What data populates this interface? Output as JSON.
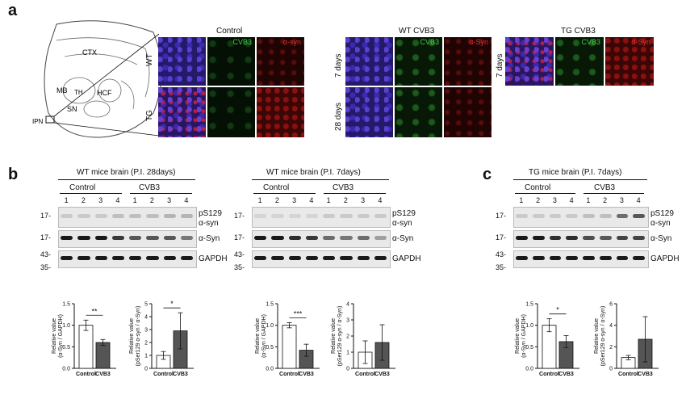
{
  "panel_labels": {
    "a": "a",
    "b": "b",
    "c": "c"
  },
  "panel_a": {
    "brain_regions": [
      "CTX",
      "MB",
      "TH",
      "HCF",
      "SN",
      "IPN"
    ],
    "control": {
      "title": "Control",
      "rows": [
        "WT",
        "TG"
      ],
      "channels": [
        "CVB3",
        "α-syn"
      ]
    },
    "wt_cvb3": {
      "title": "WT CVB3",
      "rows": [
        "7 days",
        "28 days"
      ],
      "channels": [
        "CVB3",
        "α-Syn"
      ]
    },
    "tg_cvb3": {
      "title": "TG CVB3",
      "rows": [
        "7 days"
      ],
      "channels": [
        "CVB3",
        "α-Syn"
      ]
    }
  },
  "blots": [
    {
      "title": "WT mice brain  (P.I. 28days)",
      "groups": [
        "Control",
        "CVB3"
      ],
      "lanes": [
        "1",
        "2",
        "3",
        "4",
        "1",
        "2",
        "3",
        "4"
      ],
      "markers": [
        "17-",
        "17-",
        "43-",
        "35-"
      ],
      "labels": [
        "pS129\nα-syn",
        "α-Syn",
        "GAPDH"
      ]
    },
    {
      "title": "WT mice brain  (P.I. 7days)",
      "groups": [
        "Control",
        "CVB3"
      ],
      "lanes": [
        "1",
        "2",
        "3",
        "4",
        "1",
        "2",
        "3",
        "4"
      ],
      "markers": [
        "17-",
        "17-",
        "43-",
        "35-"
      ],
      "labels": [
        "pS129\nα-syn",
        "α-Syn",
        "GAPDH"
      ]
    },
    {
      "title": "TG mice brain  (P.I. 7days)",
      "groups": [
        "Control",
        "CVB3"
      ],
      "lanes": [
        "1",
        "2",
        "3",
        "4",
        "1",
        "2",
        "3",
        "4"
      ],
      "markers": [
        "17-",
        "17-",
        "43-",
        "35-"
      ],
      "labels": [
        "pS129\nα-syn",
        "α-Syn",
        "GAPDH"
      ]
    }
  ],
  "chart_data": [
    {
      "type": "bar",
      "categories": [
        "Control",
        "CVB3"
      ],
      "values": [
        1.0,
        0.6
      ],
      "err": [
        0.12,
        0.07
      ],
      "ylim": [
        0,
        1.5
      ],
      "yticks": [
        "0.0",
        "0.5",
        "1.0",
        "1.5"
      ],
      "ylabel": "Relative value\n(α-Syn / GAPDH)",
      "sig": "**"
    },
    {
      "type": "bar",
      "categories": [
        "Control",
        "CVB3"
      ],
      "values": [
        1.0,
        2.9
      ],
      "err": [
        0.3,
        1.4
      ],
      "ylim": [
        0,
        5
      ],
      "yticks": [
        "0",
        "1",
        "2",
        "3",
        "4",
        "5"
      ],
      "ylabel": "Relative value\n(pSer129 α-syn / α-Syn)",
      "sig": "*"
    },
    {
      "type": "bar",
      "categories": [
        "Control",
        "CVB3"
      ],
      "values": [
        1.0,
        0.42
      ],
      "err": [
        0.06,
        0.14
      ],
      "ylim": [
        0,
        1.5
      ],
      "yticks": [
        "0.0",
        "0.5",
        "1.0",
        "1.5"
      ],
      "ylabel": "Relative value\n(α-Syn / GAPDH)",
      "sig": "***"
    },
    {
      "type": "bar",
      "categories": [
        "Control",
        "CVB3"
      ],
      "values": [
        1.0,
        1.6
      ],
      "err": [
        0.7,
        1.1
      ],
      "ylim": [
        0,
        4
      ],
      "yticks": [
        "0",
        "1",
        "2",
        "3",
        "4"
      ],
      "ylabel": "Relative value\n(pSer129 α-syn / α-Syn)",
      "sig": ""
    },
    {
      "type": "bar",
      "categories": [
        "Control",
        "CVB3"
      ],
      "values": [
        1.0,
        0.62
      ],
      "err": [
        0.15,
        0.14
      ],
      "ylim": [
        0,
        1.5
      ],
      "yticks": [
        "0.0",
        "0.5",
        "1.0",
        "1.5"
      ],
      "ylabel": "Relative value\n(α-Syn / GAPDH)",
      "sig": "*"
    },
    {
      "type": "bar",
      "categories": [
        "Control",
        "CVB3"
      ],
      "values": [
        1.0,
        2.7
      ],
      "err": [
        0.2,
        2.1
      ],
      "ylim": [
        0,
        6
      ],
      "yticks": [
        "0",
        "2",
        "4",
        "6"
      ],
      "ylabel": "Relative value\n(pSer129 α-syn / α-Syn)",
      "sig": ""
    }
  ]
}
